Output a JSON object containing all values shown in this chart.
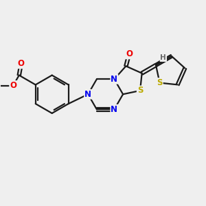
{
  "background_color": "#efefef",
  "bond_color": "#1a1a1a",
  "bond_width": 1.6,
  "atom_colors": {
    "N": "#0000ee",
    "O": "#ee0000",
    "S": "#bbaa00",
    "H": "#666666"
  },
  "font_size": 8.5,
  "fig_width": 3.0,
  "fig_height": 3.0,
  "dpi": 100
}
